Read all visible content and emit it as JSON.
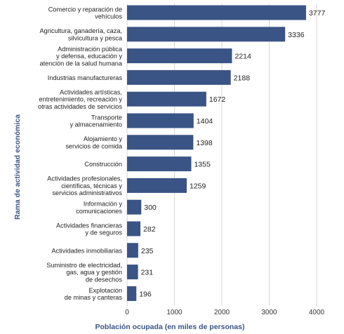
{
  "chart_data": {
    "type": "bar",
    "orientation": "horizontal",
    "xlabel": "Población ocupada (en miles de personas)",
    "ylabel": "Rama de actividad económica",
    "xlim": [
      0,
      4000
    ],
    "xticks": [
      0,
      1000,
      2000,
      3000,
      4000
    ],
    "grid": true,
    "bar_color": "#3a5485",
    "categories": [
      [
        "Comercio y reparación de",
        "vehículos"
      ],
      [
        "Agricultura, ganadería, caza,",
        "silvicultura y pesca"
      ],
      [
        "Administración pública",
        "y defensa, educación y",
        "atención de la salud humana"
      ],
      [
        "Industrias manufactureras"
      ],
      [
        "Actividades artísticas,",
        "entretenimiento, recreación y",
        "otras actividades de servicios"
      ],
      [
        "Transporte",
        "y almacenamiento"
      ],
      [
        "Alojamiento y",
        "servicios de comida"
      ],
      [
        "Construcción"
      ],
      [
        "Actividades profesionales,",
        "científicas, técnicas y",
        "servicios administrativos"
      ],
      [
        "Información y",
        "comunicaciones"
      ],
      [
        "Actividades financieras",
        "y de seguros"
      ],
      [
        "Actividades inmobiliarias"
      ],
      [
        "Suministro de electricidad,",
        "gas, agua y gestión",
        "de desechos"
      ],
      [
        "Explotación",
        "de minas y canteras"
      ]
    ],
    "values": [
      3777,
      3336,
      2214,
      2188,
      1672,
      1404,
      1398,
      1355,
      1259,
      300,
      282,
      235,
      231,
      196
    ]
  }
}
